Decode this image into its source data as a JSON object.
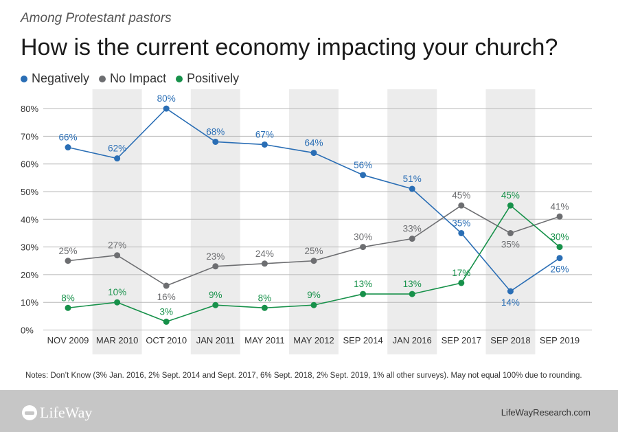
{
  "header": {
    "subtitle": "Among Protestant pastors",
    "title": "How is the current economy impacting your church?"
  },
  "colors": {
    "negatively": "#2a6eb5",
    "no_impact": "#6d6e71",
    "positively": "#17914a",
    "band": "#ececec",
    "footer": "#c6c6c6"
  },
  "chart_data": {
    "type": "line",
    "title": "How is the current economy impacting your church?",
    "subtitle": "Among Protestant pastors",
    "x": [
      "NOV 2009",
      "MAR 2010",
      "OCT 2010",
      "JAN 2011",
      "MAY 2011",
      "MAY 2012",
      "SEP 2014",
      "JAN 2016",
      "SEP 2017",
      "SEP 2018",
      "SEP 2019"
    ],
    "y_ticks": [
      "0%",
      "10%",
      "20%",
      "30%",
      "40%",
      "50%",
      "60%",
      "70%",
      "80%"
    ],
    "ylim": [
      0,
      80
    ],
    "grid": true,
    "legend_position": "top-left",
    "series": [
      {
        "name": "Negatively",
        "key": "negatively",
        "values": [
          66,
          62,
          80,
          68,
          67,
          64,
          56,
          51,
          35,
          14,
          26
        ],
        "labels": [
          "66%",
          "62%",
          "80%",
          "68%",
          "67%",
          "64%",
          "56%",
          "51%",
          "35%",
          "14%",
          "26%"
        ]
      },
      {
        "name": "No Impact",
        "key": "no_impact",
        "values": [
          25,
          27,
          16,
          23,
          24,
          25,
          30,
          33,
          45,
          35,
          41
        ],
        "labels": [
          "25%",
          "27%",
          "16%",
          "23%",
          "24%",
          "25%",
          "30%",
          "33%",
          "45%",
          "35%",
          "41%"
        ]
      },
      {
        "name": "Positively",
        "key": "positively",
        "values": [
          8,
          10,
          3,
          9,
          8,
          9,
          13,
          13,
          17,
          45,
          30
        ],
        "labels": [
          "8%",
          "10%",
          "3%",
          "9%",
          "8%",
          "9%",
          "13%",
          "13%",
          "17%",
          "45%",
          "30%"
        ]
      }
    ]
  },
  "notes": "Notes: Don’t Know (3% Jan. 2016, 2% Sept. 2014 and Sept. 2017, 6% Sept. 2018, 2% Sept. 2019, 1% all other surveys). May not equal 100% due to rounding.",
  "footer": {
    "logo_text": "LifeWay",
    "site": "LifeWayResearch.com"
  }
}
